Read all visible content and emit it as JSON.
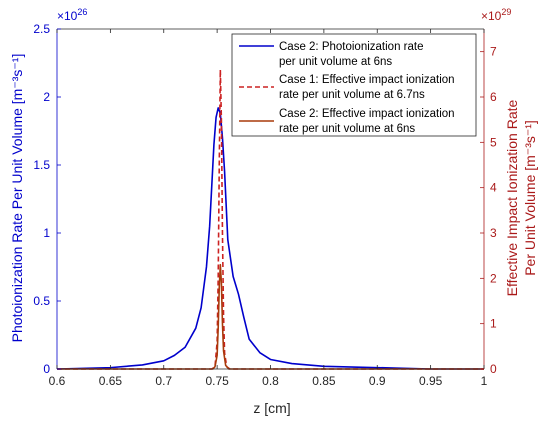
{
  "colors": {
    "left_axis": "#0000cc",
    "right_axis": "#aa1a1a",
    "case2_photo": "#0000cc",
    "case1_impact": "#cc2222",
    "case2_impact": "#a83a0a",
    "axes": "#262626"
  },
  "chart_data": {
    "type": "line",
    "xlabel": "z [cm]",
    "ylabel_left": "Photoionization Rate Per Unit Volume [m⁻³s⁻¹]",
    "ylabel_right_line1": "Effective Impact Ionization Rate",
    "ylabel_right_line2": "Per Unit Volume [m⁻³s⁻¹]",
    "left_multiplier": "×10",
    "left_multiplier_exp": "26",
    "right_multiplier": "×10",
    "right_multiplier_exp": "29",
    "xlim": [
      0.6,
      1.0
    ],
    "ylim_left": [
      0,
      2.5
    ],
    "ylim_right": [
      0,
      7.5
    ],
    "x_ticks": [
      "0.6",
      "0.65",
      "0.7",
      "0.75",
      "0.8",
      "0.85",
      "0.9",
      "0.95",
      "1"
    ],
    "y_left_ticks": [
      "0",
      "0.5",
      "1",
      "1.5",
      "2",
      "2.5"
    ],
    "y_right_ticks": [
      "0",
      "1",
      "2",
      "3",
      "4",
      "5",
      "6",
      "7"
    ],
    "legend_position": "top-right",
    "series": [
      {
        "name": "Case 2: Photoionization rate per unit volume at 6ns",
        "legend_line1": "Case 2: Photoionization rate",
        "legend_line2": "per unit volume at 6ns",
        "axis": "left",
        "style": "solid",
        "color": "#0000cc",
        "x": [
          0.6,
          0.65,
          0.68,
          0.7,
          0.71,
          0.72,
          0.73,
          0.735,
          0.74,
          0.743,
          0.745,
          0.747,
          0.749,
          0.751,
          0.753,
          0.755,
          0.757,
          0.76,
          0.765,
          0.77,
          0.775,
          0.78,
          0.79,
          0.8,
          0.82,
          0.85,
          0.9,
          0.95,
          1.0
        ],
        "y": [
          0.0,
          0.01,
          0.03,
          0.06,
          0.1,
          0.16,
          0.3,
          0.45,
          0.75,
          1.05,
          1.35,
          1.65,
          1.85,
          1.92,
          1.88,
          1.7,
          1.45,
          0.95,
          0.68,
          0.55,
          0.38,
          0.22,
          0.12,
          0.07,
          0.04,
          0.02,
          0.01,
          0.0,
          0.0
        ]
      },
      {
        "name": "Case 1: Effective impact ionization rate per unit volume at 6.7ns",
        "legend_line1": "Case 1: Effective impact ionization",
        "legend_line2": "rate per unit volume at 6.7ns",
        "axis": "right",
        "style": "dashed",
        "color": "#cc2222",
        "x": [
          0.6,
          0.745,
          0.748,
          0.75,
          0.751,
          0.752,
          0.753,
          0.754,
          0.755,
          0.756,
          0.757,
          0.759,
          0.762,
          1.0
        ],
        "y": [
          0.0,
          0.0,
          0.05,
          0.6,
          2.0,
          4.5,
          6.6,
          5.5,
          3.0,
          1.2,
          0.35,
          0.05,
          0.0,
          0.0
        ]
      },
      {
        "name": "Case 2: Effective impact ionization rate per unit volume at 6ns",
        "legend_line1": "Case 2: Effective impact ionization",
        "legend_line2": "rate per unit volume at 6ns",
        "axis": "right",
        "style": "solid",
        "color": "#a83a0a",
        "x": [
          0.6,
          0.746,
          0.748,
          0.75,
          0.751,
          0.752,
          0.753,
          0.754,
          0.755,
          0.756,
          0.758,
          0.761,
          1.0
        ],
        "y": [
          0.0,
          0.0,
          0.05,
          0.3,
          0.9,
          1.8,
          2.3,
          1.9,
          1.0,
          0.4,
          0.08,
          0.0,
          0.0
        ]
      }
    ]
  }
}
